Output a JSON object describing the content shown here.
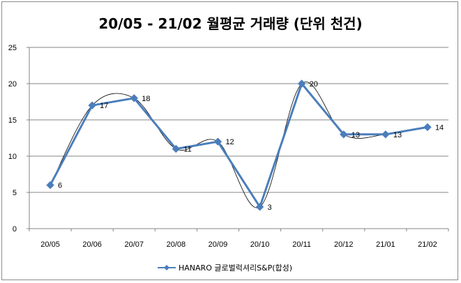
{
  "chart_data": {
    "type": "line",
    "title": "20/05 - 21/02 월평균 거래량 (단위 천건)",
    "categories": [
      "20/05",
      "20/06",
      "20/07",
      "20/08",
      "20/09",
      "20/10",
      "20/11",
      "20/12",
      "21/01",
      "21/02"
    ],
    "series": [
      {
        "name": "HANARO 글로벌럭셔리S&P(합성)",
        "values": [
          6,
          17,
          18,
          11,
          12,
          3,
          20,
          13,
          13,
          14
        ],
        "color": "#4a7ebb"
      }
    ],
    "ylim": [
      0,
      25
    ],
    "yticks": [
      0,
      5,
      10,
      15,
      20,
      25
    ],
    "grid": true,
    "legend": "bottom",
    "trendline": {
      "type": "polynomial",
      "color": "#000000"
    }
  }
}
